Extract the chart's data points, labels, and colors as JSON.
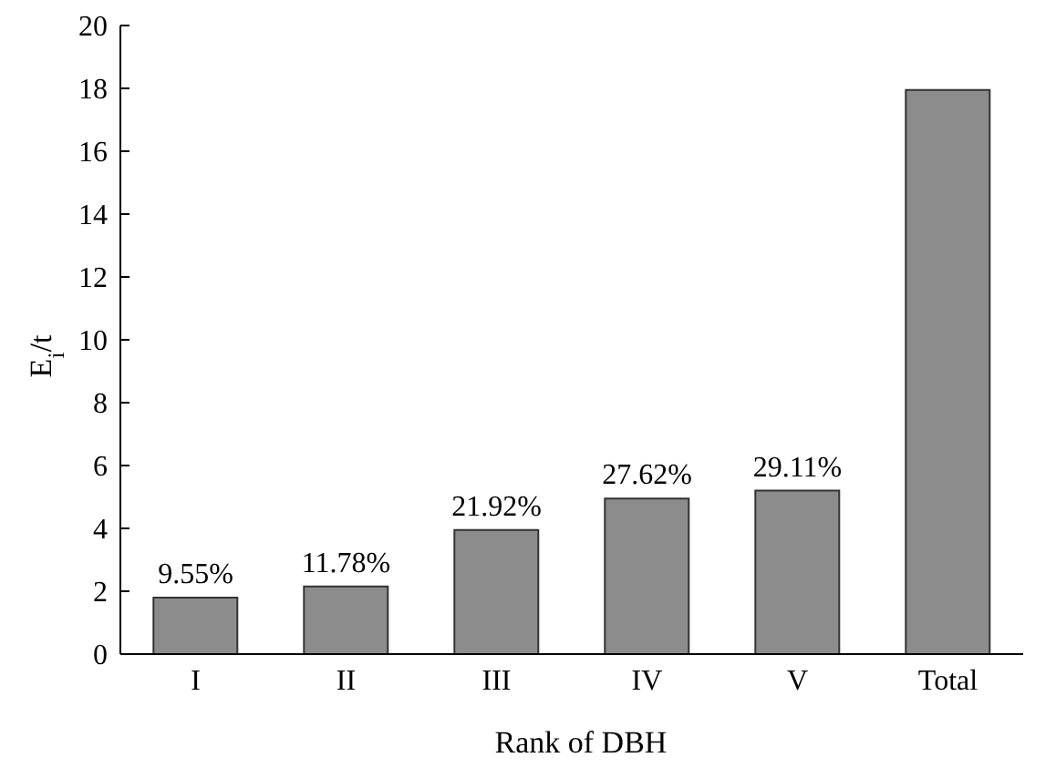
{
  "chart_data": {
    "type": "bar",
    "xlabel": "Rank of DBH",
    "ylabel": "E$_{i}$/t",
    "categories": [
      "I",
      "II",
      "III",
      "IV",
      "V",
      "Total"
    ],
    "values": [
      1.8,
      2.15,
      3.95,
      4.95,
      5.2,
      17.95
    ],
    "annotations": [
      {
        "text": "9.55%",
        "x": "I",
        "y": 1.8
      },
      {
        "text": "11.78%",
        "x": "II",
        "y": 2.15
      },
      {
        "text": "21.92%",
        "x": "III",
        "y": 3.95
      },
      {
        "text": "27.62%",
        "x": "IV",
        "y": 4.95
      },
      {
        "text": "29.11%",
        "x": "V",
        "y": 5.2
      }
    ],
    "color": "#8c8c8c",
    "ylim": [
      0,
      20
    ],
    "yticks": [
      0,
      2,
      4,
      6,
      8,
      10,
      12,
      14,
      16,
      18,
      20
    ],
    "grid": false,
    "legend": false
  }
}
